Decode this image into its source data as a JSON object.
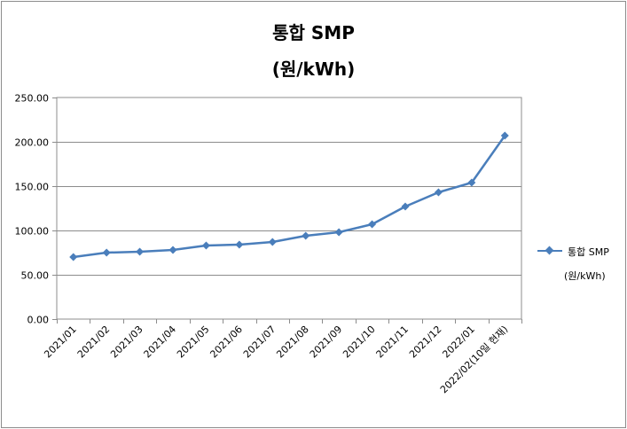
{
  "chart_data": {
    "type": "line",
    "title_line1": "통합 SMP",
    "title_line2": "(원/kWh)",
    "categories": [
      "2021/01",
      "2021/02",
      "2021/03",
      "2021/04",
      "2021/05",
      "2021/06",
      "2021/07",
      "2021/08",
      "2021/09",
      "2021/10",
      "2021/11",
      "2021/12",
      "2022/01",
      "2022/02(10일 현재)"
    ],
    "series": [
      {
        "name": "통합 SMP",
        "unit": "(원/kWh)",
        "color": "#4a7ebb",
        "values": [
          70.0,
          75.0,
          76.0,
          78.0,
          83.0,
          84.0,
          87.0,
          94.0,
          98.0,
          107.0,
          127.0,
          143.0,
          154.0,
          207.0
        ]
      }
    ],
    "ylim": [
      0,
      250
    ],
    "yticks": [
      "0.00",
      "50.00",
      "100.00",
      "150.00",
      "200.00",
      "250.00"
    ],
    "grid": true,
    "legend_position": "right"
  }
}
